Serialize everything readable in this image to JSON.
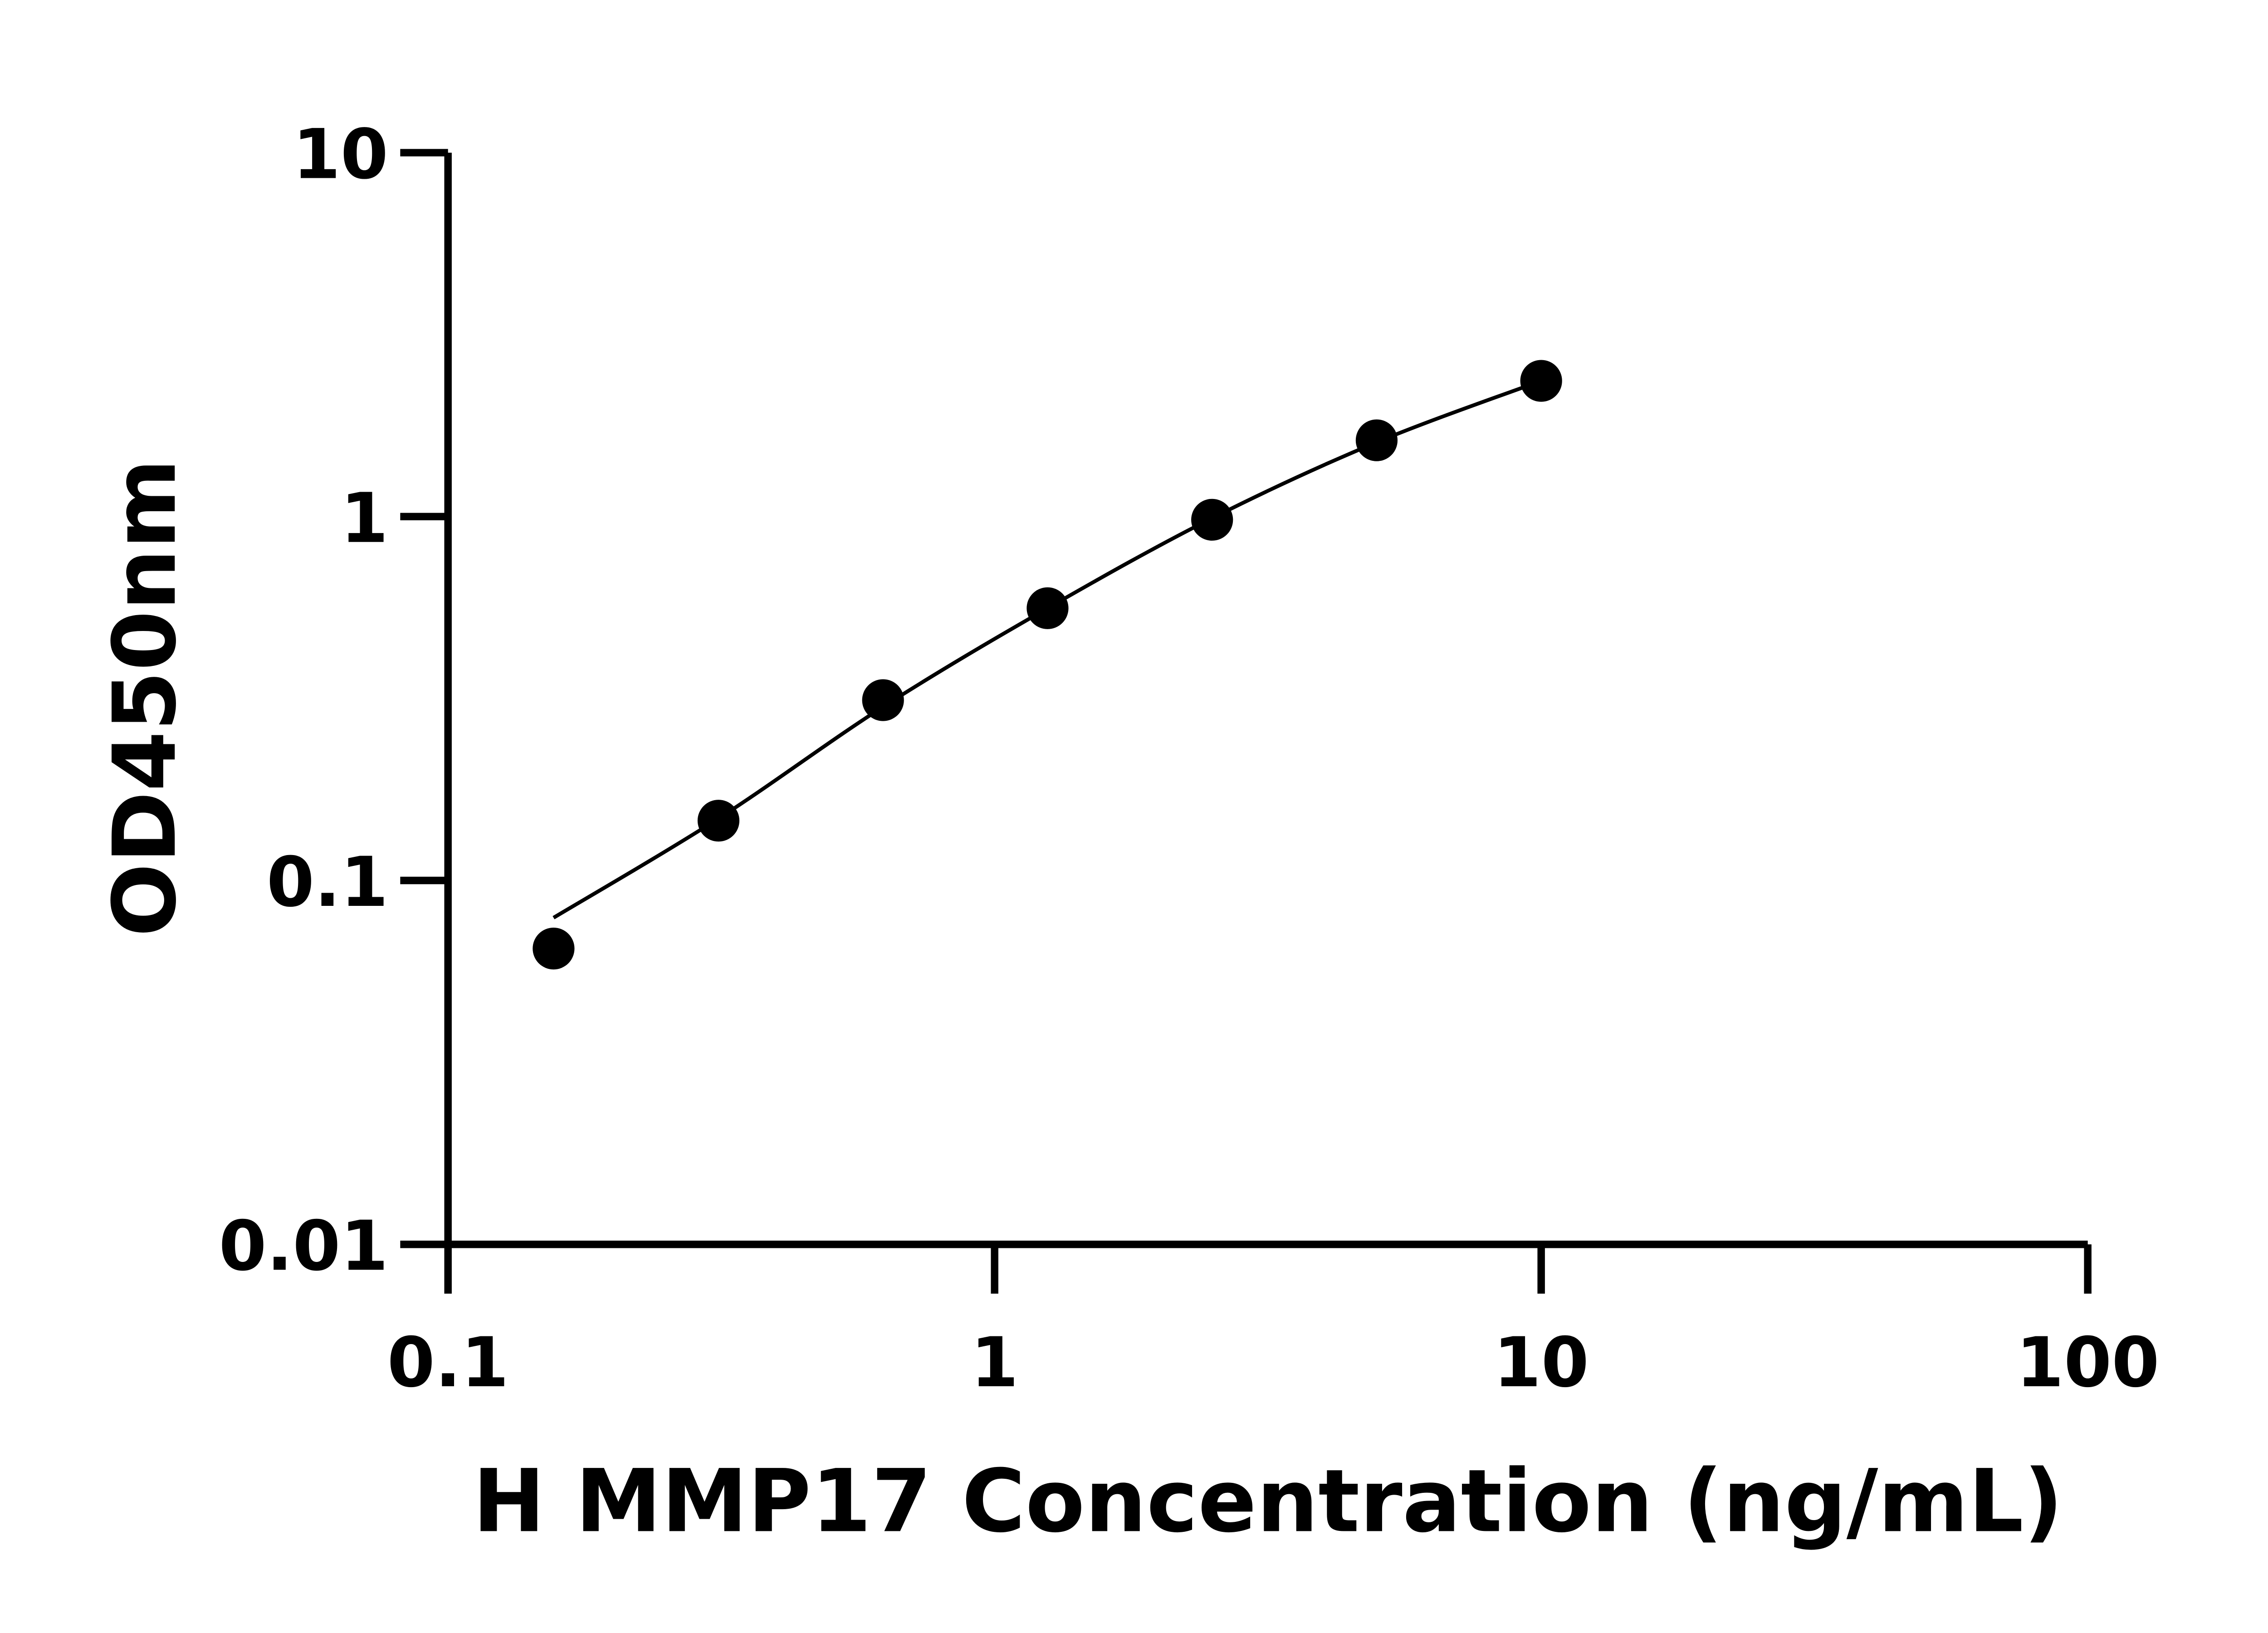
{
  "chart_data": {
    "type": "scatter",
    "title": "",
    "xlabel": "H MMP17 Concentration (ng/mL)",
    "ylabel": "OD450nm",
    "xscale": "log",
    "yscale": "log",
    "xlim": [
      0.1,
      100
    ],
    "ylim": [
      0.01,
      10
    ],
    "xticks": [
      "0.1",
      "1",
      "10",
      "100"
    ],
    "yticks": [
      "0.01",
      "0.1",
      "1",
      "10"
    ],
    "grid": false,
    "legend": "none",
    "colors": {
      "points": "#000000",
      "line": "#000000"
    },
    "points": {
      "x": [
        0.156,
        0.3125,
        0.625,
        1.25,
        2.5,
        5,
        10
      ],
      "y": [
        0.065,
        0.146,
        0.313,
        0.56,
        0.98,
        1.62,
        2.36
      ]
    },
    "fit_curve": {
      "x": [
        0.156,
        0.3125,
        0.625,
        1.25,
        2.5,
        5,
        10
      ],
      "y": [
        0.079,
        0.148,
        0.3,
        0.56,
        0.99,
        1.6,
        2.36
      ]
    }
  }
}
